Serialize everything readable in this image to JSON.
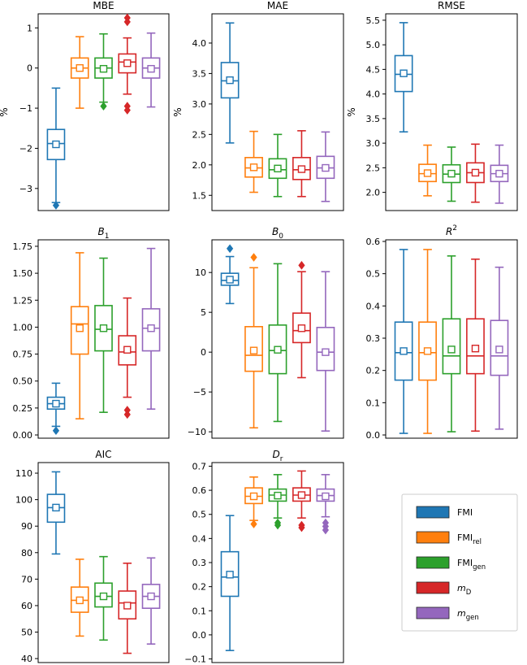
{
  "figure": {
    "type": "box-plot grid",
    "series_order": [
      "FMI",
      "FMI_rel",
      "FMI_gen",
      "m_D",
      "m_gen"
    ]
  },
  "legend": {
    "items": [
      {
        "key": "FMI",
        "base": "FMI",
        "sub": "",
        "italic": false,
        "color": "#1f77b4"
      },
      {
        "key": "FMI_rel",
        "base": "FMI",
        "sub": "rel",
        "italic": false,
        "color": "#ff7f0e"
      },
      {
        "key": "FMI_gen",
        "base": "FMI",
        "sub": "gen",
        "italic": false,
        "color": "#2ca02c"
      },
      {
        "key": "m_D",
        "base": "m",
        "sub": "D",
        "italic": true,
        "color": "#d62728"
      },
      {
        "key": "m_gen",
        "base": "m",
        "sub": "gen",
        "italic": true,
        "color": "#9467bd"
      }
    ]
  },
  "chart_data": [
    {
      "id": "mbe",
      "type": "box",
      "title": "MBE",
      "title_sub": "",
      "title_sup": "",
      "title_italic": false,
      "ylabel": "%",
      "ylim": [
        -3.55,
        1.35
      ],
      "yticks": [
        -3,
        -2,
        -1,
        0,
        1
      ],
      "ytick_labels": [
        "−3",
        "−2",
        "−1",
        "0",
        "1"
      ],
      "boxes": [
        {
          "series": "FMI",
          "whislo": -3.35,
          "q1": -2.28,
          "med": -1.88,
          "q3": -1.53,
          "whishi": -0.5,
          "mean": -1.9,
          "fliers": [
            -3.42
          ]
        },
        {
          "series": "FMI_rel",
          "whislo": -1.0,
          "q1": -0.25,
          "med": 0.0,
          "q3": 0.25,
          "whishi": 0.78,
          "mean": 0.0,
          "fliers": []
        },
        {
          "series": "FMI_gen",
          "whislo": -0.85,
          "q1": -0.25,
          "med": 0.0,
          "q3": 0.25,
          "whishi": 0.85,
          "mean": -0.02,
          "fliers": [
            -0.95
          ]
        },
        {
          "series": "m_D",
          "whislo": -0.65,
          "q1": -0.12,
          "med": 0.15,
          "q3": 0.35,
          "whishi": 0.75,
          "mean": 0.12,
          "fliers": [
            -0.95,
            -1.05,
            1.15,
            1.25
          ]
        },
        {
          "series": "m_gen",
          "whislo": -0.97,
          "q1": -0.25,
          "med": 0.0,
          "q3": 0.25,
          "whishi": 0.87,
          "mean": -0.02,
          "fliers": []
        }
      ]
    },
    {
      "id": "mae",
      "type": "box",
      "title": "MAE",
      "title_sub": "",
      "title_sup": "",
      "title_italic": false,
      "ylabel": "%",
      "ylim": [
        1.25,
        4.48
      ],
      "yticks": [
        1.5,
        2.0,
        2.5,
        3.0,
        3.5,
        4.0
      ],
      "ytick_labels": [
        "1.5",
        "2.0",
        "2.5",
        "3.0",
        "3.5",
        "4.0"
      ],
      "boxes": [
        {
          "series": "FMI",
          "whislo": 2.36,
          "q1": 3.1,
          "med": 3.38,
          "q3": 3.68,
          "whishi": 4.33,
          "mean": 3.39,
          "fliers": []
        },
        {
          "series": "FMI_rel",
          "whislo": 1.55,
          "q1": 1.8,
          "med": 1.95,
          "q3": 2.12,
          "whishi": 2.55,
          "mean": 1.96,
          "fliers": []
        },
        {
          "series": "FMI_gen",
          "whislo": 1.48,
          "q1": 1.78,
          "med": 1.92,
          "q3": 2.1,
          "whishi": 2.5,
          "mean": 1.94,
          "fliers": []
        },
        {
          "series": "m_D",
          "whislo": 1.48,
          "q1": 1.76,
          "med": 1.92,
          "q3": 2.12,
          "whishi": 2.56,
          "mean": 1.93,
          "fliers": []
        },
        {
          "series": "m_gen",
          "whislo": 1.4,
          "q1": 1.78,
          "med": 1.95,
          "q3": 2.14,
          "whishi": 2.54,
          "mean": 1.95,
          "fliers": []
        }
      ]
    },
    {
      "id": "rmse",
      "type": "box",
      "title": "RMSE",
      "title_sub": "",
      "title_sup": "",
      "title_italic": false,
      "ylabel": "%",
      "ylim": [
        1.63,
        5.63
      ],
      "yticks": [
        2.0,
        2.5,
        3.0,
        3.5,
        4.0,
        4.5,
        5.0,
        5.5
      ],
      "ytick_labels": [
        "2.0",
        "2.5",
        "3.0",
        "3.5",
        "4.0",
        "4.5",
        "5.0",
        "5.5"
      ],
      "boxes": [
        {
          "series": "FMI",
          "whislo": 3.23,
          "q1": 4.05,
          "med": 4.4,
          "q3": 4.78,
          "whishi": 5.45,
          "mean": 4.42,
          "fliers": []
        },
        {
          "series": "FMI_rel",
          "whislo": 1.93,
          "q1": 2.22,
          "med": 2.38,
          "q3": 2.57,
          "whishi": 2.96,
          "mean": 2.39,
          "fliers": []
        },
        {
          "series": "FMI_gen",
          "whislo": 1.82,
          "q1": 2.2,
          "med": 2.37,
          "q3": 2.56,
          "whishi": 2.92,
          "mean": 2.38,
          "fliers": []
        },
        {
          "series": "m_D",
          "whislo": 1.8,
          "q1": 2.2,
          "med": 2.4,
          "q3": 2.6,
          "whishi": 2.98,
          "mean": 2.4,
          "fliers": []
        },
        {
          "series": "m_gen",
          "whislo": 1.78,
          "q1": 2.22,
          "med": 2.38,
          "q3": 2.55,
          "whishi": 2.96,
          "mean": 2.38,
          "fliers": []
        }
      ]
    },
    {
      "id": "b1",
      "type": "box",
      "title": "B",
      "title_sub": "1",
      "title_sup": "",
      "title_italic": true,
      "ylabel": "",
      "ylim": [
        -0.03,
        1.81
      ],
      "yticks": [
        0.0,
        0.25,
        0.5,
        0.75,
        1.0,
        1.25,
        1.5,
        1.75
      ],
      "ytick_labels": [
        "0.00",
        "0.25",
        "0.50",
        "0.75",
        "1.00",
        "1.25",
        "1.50",
        "1.75"
      ],
      "boxes": [
        {
          "series": "FMI",
          "whislo": 0.08,
          "q1": 0.24,
          "med": 0.29,
          "q3": 0.35,
          "whishi": 0.48,
          "mean": 0.29,
          "fliers": [
            0.04
          ]
        },
        {
          "series": "FMI_rel",
          "whislo": 0.15,
          "q1": 0.75,
          "med": 1.03,
          "q3": 1.19,
          "whishi": 1.69,
          "mean": 0.99,
          "fliers": []
        },
        {
          "series": "FMI_gen",
          "whislo": 0.21,
          "q1": 0.78,
          "med": 0.98,
          "q3": 1.2,
          "whishi": 1.64,
          "mean": 0.99,
          "fliers": []
        },
        {
          "series": "m_D",
          "whislo": 0.35,
          "q1": 0.65,
          "med": 0.77,
          "q3": 0.92,
          "whishi": 1.27,
          "mean": 0.79,
          "fliers": [
            0.19,
            0.23
          ]
        },
        {
          "series": "m_gen",
          "whislo": 0.24,
          "q1": 0.78,
          "med": 0.99,
          "q3": 1.17,
          "whishi": 1.73,
          "mean": 0.99,
          "fliers": []
        }
      ]
    },
    {
      "id": "b0",
      "type": "box",
      "title": "B",
      "title_sub": "0",
      "title_sup": "",
      "title_italic": true,
      "ylabel": "",
      "ylim": [
        -10.8,
        14.1
      ],
      "yticks": [
        -10,
        -5,
        0,
        5,
        10
      ],
      "ytick_labels": [
        "−10",
        "−5",
        "0",
        "5",
        "10"
      ],
      "boxes": [
        {
          "series": "FMI",
          "whislo": 6.1,
          "q1": 8.4,
          "med": 9.0,
          "q3": 9.9,
          "whishi": 12.0,
          "mean": 9.1,
          "fliers": [
            13.0
          ]
        },
        {
          "series": "FMI_rel",
          "whislo": -9.5,
          "q1": -2.4,
          "med": -0.4,
          "q3": 3.2,
          "whishi": 10.6,
          "mean": 0.2,
          "fliers": [
            11.9
          ]
        },
        {
          "series": "FMI_gen",
          "whislo": -8.7,
          "q1": -2.7,
          "med": 0.2,
          "q3": 3.4,
          "whishi": 11.1,
          "mean": 0.3,
          "fliers": []
        },
        {
          "series": "m_D",
          "whislo": -3.2,
          "q1": 1.2,
          "med": 2.7,
          "q3": 4.9,
          "whishi": 10.1,
          "mean": 3.0,
          "fliers": [
            10.9
          ]
        },
        {
          "series": "m_gen",
          "whislo": -9.9,
          "q1": -2.3,
          "med": 0.0,
          "q3": 3.1,
          "whishi": 10.1,
          "mean": 0.0,
          "fliers": []
        }
      ]
    },
    {
      "id": "r2",
      "type": "box",
      "title": "R",
      "title_sub": "",
      "title_sup": "2",
      "title_italic": true,
      "ylabel": "",
      "ylim": [
        -0.01,
        0.605
      ],
      "yticks": [
        0.0,
        0.1,
        0.2,
        0.3,
        0.4,
        0.5,
        0.6
      ],
      "ytick_labels": [
        "0.0",
        "0.1",
        "0.2",
        "0.3",
        "0.4",
        "0.5",
        "0.6"
      ],
      "boxes": [
        {
          "series": "FMI",
          "whislo": 0.005,
          "q1": 0.17,
          "med": 0.255,
          "q3": 0.35,
          "whishi": 0.575,
          "mean": 0.26,
          "fliers": []
        },
        {
          "series": "FMI_rel",
          "whislo": 0.005,
          "q1": 0.17,
          "med": 0.255,
          "q3": 0.35,
          "whishi": 0.575,
          "mean": 0.26,
          "fliers": []
        },
        {
          "series": "FMI_gen",
          "whislo": 0.01,
          "q1": 0.19,
          "med": 0.245,
          "q3": 0.36,
          "whishi": 0.555,
          "mean": 0.265,
          "fliers": []
        },
        {
          "series": "m_D",
          "whislo": 0.012,
          "q1": 0.19,
          "med": 0.245,
          "q3": 0.36,
          "whishi": 0.545,
          "mean": 0.268,
          "fliers": []
        },
        {
          "series": "m_gen",
          "whislo": 0.018,
          "q1": 0.185,
          "med": 0.245,
          "q3": 0.355,
          "whishi": 0.52,
          "mean": 0.265,
          "fliers": []
        }
      ]
    },
    {
      "id": "aic",
      "type": "box",
      "title": "AIC",
      "title_sub": "",
      "title_sup": "",
      "title_italic": false,
      "ylabel": "",
      "ylim": [
        38.5,
        114.0
      ],
      "yticks": [
        40,
        50,
        60,
        70,
        80,
        90,
        100,
        110
      ],
      "ytick_labels": [
        "40",
        "50",
        "60",
        "70",
        "80",
        "90",
        "100",
        "110"
      ],
      "boxes": [
        {
          "series": "FMI",
          "whislo": 79.5,
          "q1": 91.5,
          "med": 97.0,
          "q3": 102.0,
          "whishi": 110.5,
          "mean": 97.0,
          "fliers": []
        },
        {
          "series": "FMI_rel",
          "whislo": 48.5,
          "q1": 57.5,
          "med": 62.0,
          "q3": 67.0,
          "whishi": 77.5,
          "mean": 62.0,
          "fliers": []
        },
        {
          "series": "FMI_gen",
          "whislo": 47.0,
          "q1": 59.5,
          "med": 63.5,
          "q3": 68.5,
          "whishi": 78.5,
          "mean": 63.5,
          "fliers": []
        },
        {
          "series": "m_D",
          "whislo": 42.0,
          "q1": 55.0,
          "med": 61.0,
          "q3": 65.5,
          "whishi": 76.0,
          "mean": 60.0,
          "fliers": []
        },
        {
          "series": "m_gen",
          "whislo": 45.5,
          "q1": 59.0,
          "med": 63.5,
          "q3": 68.0,
          "whishi": 78.0,
          "mean": 63.5,
          "fliers": []
        }
      ]
    },
    {
      "id": "dr",
      "type": "box",
      "title": "D",
      "title_sub": "r",
      "title_sup": "",
      "title_italic": true,
      "ylabel": "",
      "ylim": [
        -0.115,
        0.715
      ],
      "yticks": [
        -0.1,
        0.0,
        0.1,
        0.2,
        0.3,
        0.4,
        0.5,
        0.6,
        0.7
      ],
      "ytick_labels": [
        "−0.1",
        "0.0",
        "0.1",
        "0.2",
        "0.3",
        "0.4",
        "0.5",
        "0.6",
        "0.7"
      ],
      "boxes": [
        {
          "series": "FMI",
          "whislo": -0.065,
          "q1": 0.16,
          "med": 0.24,
          "q3": 0.345,
          "whishi": 0.495,
          "mean": 0.25,
          "fliers": []
        },
        {
          "series": "FMI_rel",
          "whislo": 0.475,
          "q1": 0.545,
          "med": 0.575,
          "q3": 0.61,
          "whishi": 0.655,
          "mean": 0.575,
          "fliers": [
            0.46
          ]
        },
        {
          "series": "FMI_gen",
          "whislo": 0.485,
          "q1": 0.555,
          "med": 0.58,
          "q3": 0.605,
          "whishi": 0.665,
          "mean": 0.578,
          "fliers": [
            0.465,
            0.455
          ]
        },
        {
          "series": "m_D",
          "whislo": 0.485,
          "q1": 0.555,
          "med": 0.58,
          "q3": 0.61,
          "whishi": 0.68,
          "mean": 0.58,
          "fliers": [
            0.455,
            0.445
          ]
        },
        {
          "series": "m_gen",
          "whislo": 0.49,
          "q1": 0.555,
          "med": 0.578,
          "q3": 0.605,
          "whishi": 0.665,
          "mean": 0.575,
          "fliers": [
            0.465,
            0.45,
            0.435
          ]
        }
      ]
    }
  ]
}
